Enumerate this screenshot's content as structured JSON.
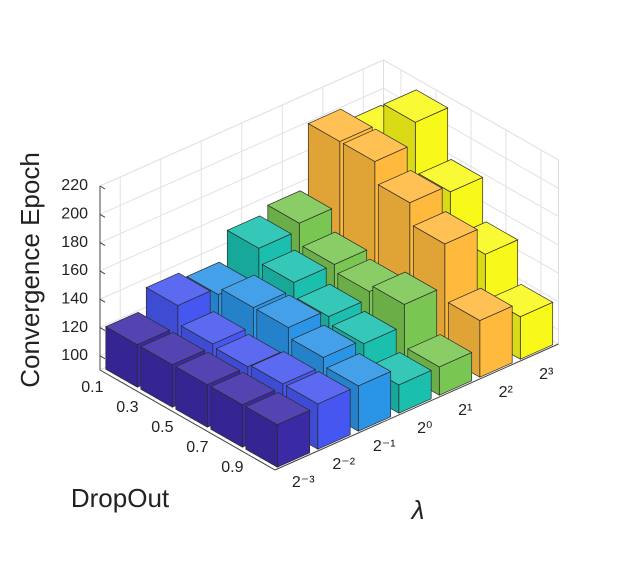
{
  "chart_data": {
    "type": "bar3",
    "z_label": "Convergence Epoch",
    "y_label": "DropOut",
    "x_label": "λ",
    "categories": [
      "0.1",
      "0.3",
      "0.5",
      "0.7",
      "0.9"
    ],
    "series": [
      {
        "name": "2⁻³",
        "color": "#3b2aa6",
        "values": [
          120,
          120,
          120,
          120,
          120
        ]
      },
      {
        "name": "2⁻²",
        "color": "#4656f0",
        "values": [
          135,
          122,
          120,
          122,
          122
        ]
      },
      {
        "name": "2⁻¹",
        "color": "#2a94e6",
        "values": [
          130,
          135,
          135,
          128,
          122
        ]
      },
      {
        "name": "2⁰",
        "color": "#1abfae",
        "values": [
          150,
          140,
          130,
          125,
          110
        ]
      },
      {
        "name": "2¹",
        "color": "#7ac652",
        "values": [
          155,
          140,
          135,
          140,
          110
        ]
      },
      {
        "name": "2²",
        "color": "#ffb93c",
        "values": [
          200,
          200,
          185,
          170,
          130
        ]
      },
      {
        "name": "2³",
        "color": "#f8f81a",
        "values": [
          190,
          215,
          180,
          150,
          120
        ]
      }
    ],
    "zlim": [
      90,
      220
    ],
    "zticks": [
      100,
      120,
      140,
      160,
      180,
      200,
      220
    ],
    "grid": true
  }
}
